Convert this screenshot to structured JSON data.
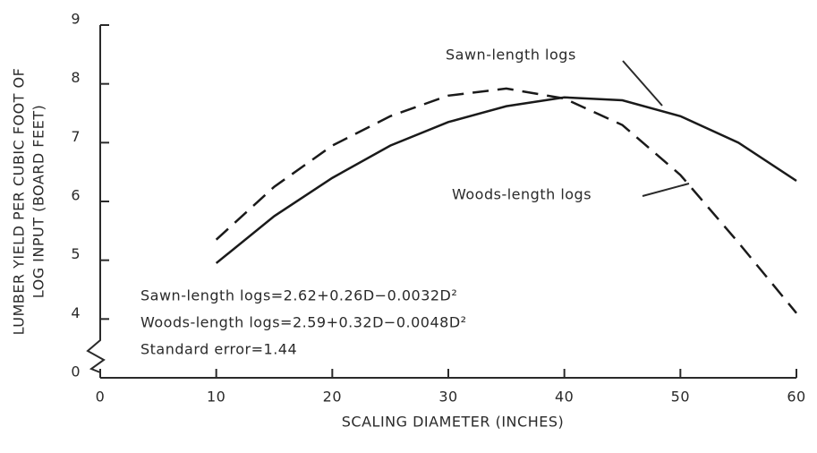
{
  "chart_data": {
    "type": "line",
    "ylabel": [
      "LUMBER YIELD PER CUBIC FOOT OF",
      "LOG INPUT (BOARD FEET)"
    ],
    "xlabel": "SCALING DIAMETER (INCHES)",
    "x": [
      10,
      15,
      20,
      25,
      30,
      35,
      40,
      45,
      50,
      55,
      60
    ],
    "series": [
      {
        "name": "Sawn-length logs",
        "color": "#1a1a1a",
        "dashed": false,
        "values": [
          4.95,
          5.75,
          6.4,
          6.95,
          7.35,
          7.62,
          7.77,
          7.72,
          7.45,
          7.0,
          6.35
        ]
      },
      {
        "name": "Woods-length logs",
        "color": "#1a1a1a",
        "dashed": true,
        "values": [
          5.35,
          6.25,
          6.95,
          7.45,
          7.8,
          7.92,
          7.75,
          7.3,
          6.45,
          5.3,
          4.1
        ]
      }
    ],
    "xlim": [
      0,
      60
    ],
    "xticks": [
      0,
      10,
      20,
      30,
      40,
      50,
      60
    ],
    "ylim": [
      0,
      9
    ],
    "yticks": [
      0,
      4,
      5,
      6,
      7,
      8,
      9
    ],
    "y_axis_break": [
      0,
      3
    ],
    "annotations": [
      "Sawn-length logs=2.62+0.26D−0.0032D²",
      "Woods-length logs=2.59+0.32D−0.0048D²",
      "Standard error=1.44"
    ]
  }
}
